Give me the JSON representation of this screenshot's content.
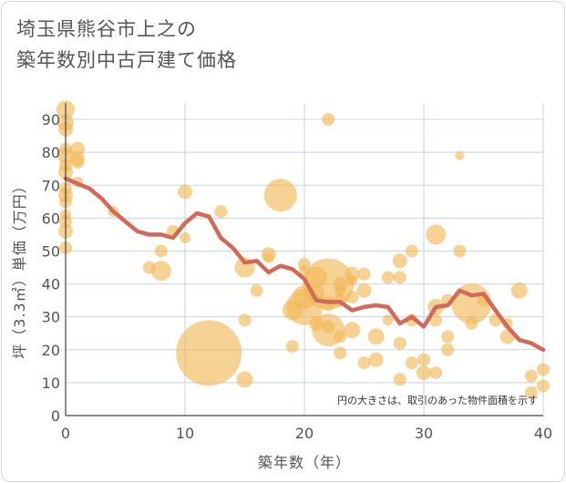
{
  "header": {
    "title_line1": "埼玉県熊谷市上之の",
    "title_line2": "築年数別中古戸建て価格"
  },
  "chart_data": {
    "type": "scatter",
    "xlabel": "築年数（年）",
    "ylabel": "坪（3.3㎡）単価（万円）",
    "xlim": [
      0,
      40
    ],
    "ylim": [
      0,
      95
    ],
    "xticks": [
      0,
      10,
      20,
      30,
      40
    ],
    "yticks": [
      0,
      10,
      20,
      30,
      40,
      50,
      60,
      70,
      80,
      90
    ],
    "grid": true,
    "note": "円の大きさは、取引のあった物件面積を示す",
    "colors": {
      "bubble": "#f2b654",
      "line": "#d26a59",
      "grid": "#c8d3e3",
      "axis": "#444444"
    },
    "bubbles": [
      {
        "x": 0,
        "y": 93,
        "s": 10
      },
      {
        "x": 0,
        "y": 89,
        "s": 9
      },
      {
        "x": 0,
        "y": 87,
        "s": 8
      },
      {
        "x": 0,
        "y": 81,
        "s": 7
      },
      {
        "x": 0,
        "y": 79,
        "s": 9
      },
      {
        "x": 0,
        "y": 76,
        "s": 7
      },
      {
        "x": 0,
        "y": 74,
        "s": 8
      },
      {
        "x": 0,
        "y": 69,
        "s": 7
      },
      {
        "x": 0,
        "y": 67,
        "s": 8
      },
      {
        "x": 0,
        "y": 65,
        "s": 7
      },
      {
        "x": 0,
        "y": 59,
        "s": 7
      },
      {
        "x": 0,
        "y": 56,
        "s": 8
      },
      {
        "x": 0,
        "y": 51,
        "s": 7
      },
      {
        "x": 0,
        "y": 61,
        "s": 6
      },
      {
        "x": 1,
        "y": 81,
        "s": 8
      },
      {
        "x": 1,
        "y": 78,
        "s": 8
      },
      {
        "x": 1,
        "y": 77,
        "s": 7
      },
      {
        "x": 1,
        "y": 71,
        "s": 6
      },
      {
        "x": 4,
        "y": 62,
        "s": 6
      },
      {
        "x": 7,
        "y": 45,
        "s": 7
      },
      {
        "x": 8,
        "y": 50,
        "s": 7
      },
      {
        "x": 8,
        "y": 44,
        "s": 11
      },
      {
        "x": 9,
        "y": 56,
        "s": 7
      },
      {
        "x": 10,
        "y": 68,
        "s": 8
      },
      {
        "x": 10,
        "y": 54,
        "s": 6
      },
      {
        "x": 12,
        "y": 19,
        "s": 36
      },
      {
        "x": 13,
        "y": 62,
        "s": 7
      },
      {
        "x": 15,
        "y": 45,
        "s": 11
      },
      {
        "x": 15,
        "y": 29,
        "s": 7
      },
      {
        "x": 15,
        "y": 11,
        "s": 9
      },
      {
        "x": 16,
        "y": 38,
        "s": 7
      },
      {
        "x": 17,
        "y": 49,
        "s": 8
      },
      {
        "x": 17,
        "y": 48,
        "s": 6
      },
      {
        "x": 18,
        "y": 67,
        "s": 18
      },
      {
        "x": 19,
        "y": 32,
        "s": 11
      },
      {
        "x": 19,
        "y": 21,
        "s": 7
      },
      {
        "x": 20,
        "y": 46,
        "s": 7
      },
      {
        "x": 20,
        "y": 36,
        "s": 13
      },
      {
        "x": 20,
        "y": 33,
        "s": 20
      },
      {
        "x": 20,
        "y": 44,
        "s": 6
      },
      {
        "x": 21,
        "y": 42,
        "s": 12
      },
      {
        "x": 21,
        "y": 28,
        "s": 8
      },
      {
        "x": 21,
        "y": 37,
        "s": 9
      },
      {
        "x": 22,
        "y": 40,
        "s": 28
      },
      {
        "x": 22,
        "y": 26,
        "s": 18
      },
      {
        "x": 22,
        "y": 90,
        "s": 7
      },
      {
        "x": 22,
        "y": 34,
        "s": 8
      },
      {
        "x": 22,
        "y": 27,
        "s": 7
      },
      {
        "x": 23,
        "y": 40,
        "s": 8
      },
      {
        "x": 23,
        "y": 35,
        "s": 7
      },
      {
        "x": 23,
        "y": 24,
        "s": 7
      },
      {
        "x": 23,
        "y": 19,
        "s": 7
      },
      {
        "x": 23,
        "y": 38,
        "s": 6
      },
      {
        "x": 24,
        "y": 43,
        "s": 8
      },
      {
        "x": 24,
        "y": 26,
        "s": 9
      },
      {
        "x": 24,
        "y": 41,
        "s": 6
      },
      {
        "x": 24,
        "y": 36,
        "s": 7
      },
      {
        "x": 25,
        "y": 43,
        "s": 7
      },
      {
        "x": 25,
        "y": 38,
        "s": 8
      },
      {
        "x": 25,
        "y": 16,
        "s": 7
      },
      {
        "x": 26,
        "y": 24,
        "s": 9
      },
      {
        "x": 26,
        "y": 17,
        "s": 8
      },
      {
        "x": 27,
        "y": 42,
        "s": 7
      },
      {
        "x": 27,
        "y": 29,
        "s": 6
      },
      {
        "x": 28,
        "y": 47,
        "s": 8
      },
      {
        "x": 28,
        "y": 42,
        "s": 7
      },
      {
        "x": 28,
        "y": 22,
        "s": 7
      },
      {
        "x": 28,
        "y": 11,
        "s": 7
      },
      {
        "x": 29,
        "y": 50,
        "s": 7
      },
      {
        "x": 29,
        "y": 29,
        "s": 7
      },
      {
        "x": 29,
        "y": 16,
        "s": 7
      },
      {
        "x": 30,
        "y": 17,
        "s": 7
      },
      {
        "x": 30,
        "y": 13,
        "s": 8
      },
      {
        "x": 31,
        "y": 55,
        "s": 11
      },
      {
        "x": 31,
        "y": 33,
        "s": 9
      },
      {
        "x": 31,
        "y": 29,
        "s": 7
      },
      {
        "x": 31,
        "y": 13,
        "s": 7
      },
      {
        "x": 32,
        "y": 35,
        "s": 7
      },
      {
        "x": 32,
        "y": 24,
        "s": 7
      },
      {
        "x": 32,
        "y": 20,
        "s": 7
      },
      {
        "x": 33,
        "y": 79,
        "s": 5
      },
      {
        "x": 33,
        "y": 50,
        "s": 7
      },
      {
        "x": 34,
        "y": 34,
        "s": 22
      },
      {
        "x": 34,
        "y": 28,
        "s": 7
      },
      {
        "x": 35,
        "y": 35,
        "s": 7
      },
      {
        "x": 36,
        "y": 29,
        "s": 7
      },
      {
        "x": 37,
        "y": 24,
        "s": 8
      },
      {
        "x": 37,
        "y": 28,
        "s": 6
      },
      {
        "x": 38,
        "y": 38,
        "s": 9
      },
      {
        "x": 39,
        "y": 12,
        "s": 7
      },
      {
        "x": 39,
        "y": 7,
        "s": 7
      },
      {
        "x": 40,
        "y": 14,
        "s": 7
      },
      {
        "x": 40,
        "y": 9,
        "s": 7
      }
    ],
    "trend": {
      "x": [
        0,
        1,
        2,
        3,
        4,
        5,
        6,
        7,
        8,
        9,
        10,
        11,
        12,
        13,
        14,
        15,
        16,
        17,
        18,
        19,
        20,
        21,
        22,
        23,
        24,
        25,
        26,
        27,
        28,
        29,
        30,
        31,
        32,
        33,
        34,
        35,
        36,
        37,
        38,
        39,
        40
      ],
      "y": [
        72,
        70.5,
        69,
        66,
        62,
        59,
        56,
        55,
        55,
        54,
        58.5,
        61.5,
        60.5,
        54,
        51,
        46.5,
        47,
        43.5,
        45.5,
        44.5,
        41.5,
        35,
        34.5,
        34.5,
        32,
        33,
        33.5,
        33,
        28,
        30,
        27,
        33,
        33.5,
        38,
        36.5,
        37,
        32,
        27,
        23,
        22,
        20
      ]
    }
  }
}
